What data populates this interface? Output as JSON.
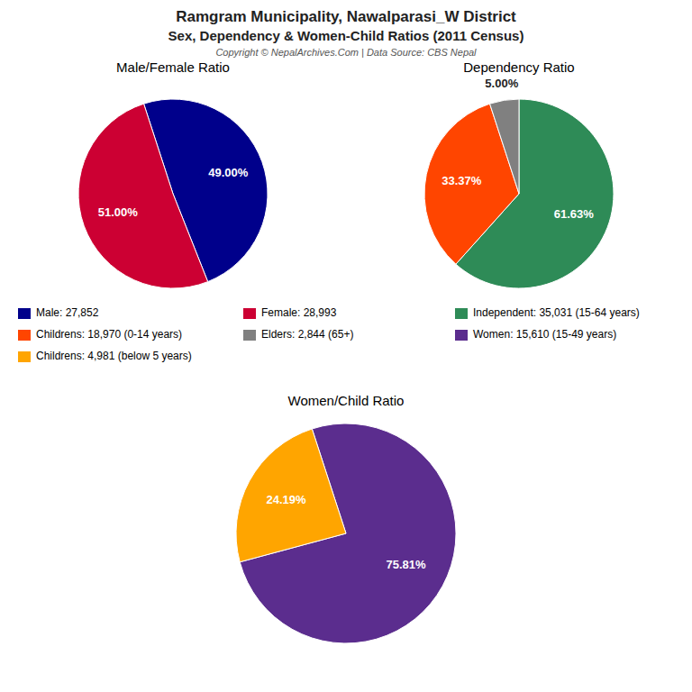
{
  "title": "Ramgram Municipality, Nawalparasi_W District",
  "subtitle": "Sex, Dependency & Women-Child Ratios (2011 Census)",
  "annotations": [
    "Copyright © NepalArchives.Com | Data Source: CBS Nepal"
  ],
  "chart_data": [
    {
      "type": "pie",
      "title": "Male/Female Ratio",
      "categories": [
        "Male: 27,852",
        "Female: 28,993"
      ],
      "values": [
        49.0,
        51.0
      ],
      "value_labels": [
        "49.00%",
        "51.00%"
      ],
      "colors": [
        "#00008B",
        "#CC0033"
      ],
      "data_labels": true,
      "legend": "center"
    },
    {
      "type": "pie",
      "title": "Dependency Ratio",
      "categories": [
        "Independent: 35,031 (15-64 years)",
        "Childrens: 18,970 (0-14 years)",
        "Elders: 2,844 (65+)"
      ],
      "values": [
        61.63,
        33.37,
        5.0
      ],
      "value_labels": [
        "61.63%",
        "33.37%",
        "5.00%"
      ],
      "colors": [
        "#2E8B57",
        "#FF4500",
        "#808080"
      ],
      "data_labels": true,
      "legend": "center"
    },
    {
      "type": "pie",
      "title": "Women/Child Ratio",
      "categories": [
        "Women: 15,610 (15-49 years)",
        "Childrens: 4,981 (below 5 years)"
      ],
      "values": [
        75.81,
        24.19
      ],
      "value_labels": [
        "75.81%",
        "24.19%"
      ],
      "colors": [
        "#5B2D8E",
        "#FFA500"
      ],
      "data_labels": true,
      "legend": "center"
    }
  ]
}
